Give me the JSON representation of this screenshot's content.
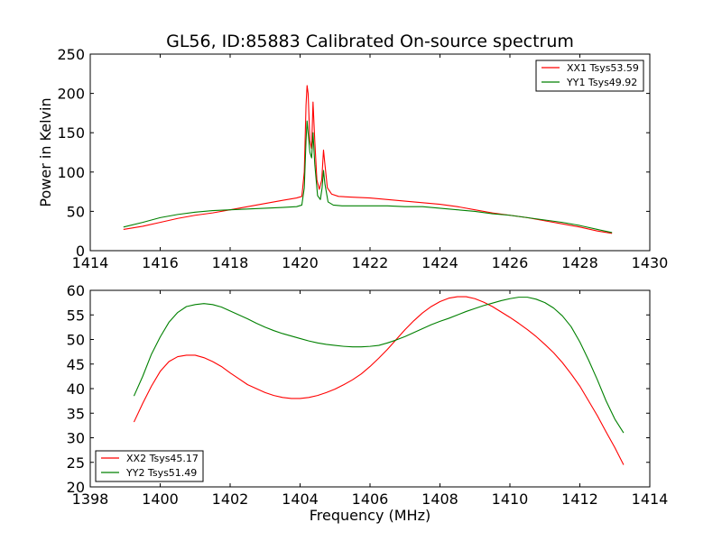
{
  "chart_data": [
    {
      "type": "line",
      "title": "GL56, ID:85883 Calibrated On-source spectrum",
      "xlabel": "",
      "ylabel": "Power in Kelvin",
      "xlim": [
        1414,
        1430
      ],
      "ylim": [
        0,
        250
      ],
      "xticks": [
        1414,
        1416,
        1418,
        1420,
        1422,
        1424,
        1426,
        1428,
        1430
      ],
      "yticks": [
        0,
        50,
        100,
        150,
        200,
        250
      ],
      "legend": "top-right",
      "grid": false,
      "series": [
        {
          "name": "XX1 Tsys53.59",
          "color": "#ff0000",
          "points": [
            [
              1414.95,
              27
            ],
            [
              1415.5,
              31
            ],
            [
              1416,
              36
            ],
            [
              1416.5,
              41
            ],
            [
              1417,
              45
            ],
            [
              1417.5,
              48
            ],
            [
              1418,
              52
            ],
            [
              1418.5,
              56
            ],
            [
              1419,
              60
            ],
            [
              1419.5,
              64
            ],
            [
              1419.9,
              67
            ],
            [
              1420.05,
              69
            ],
            [
              1420.12,
              100
            ],
            [
              1420.17,
              185
            ],
            [
              1420.2,
              210
            ],
            [
              1420.23,
              200
            ],
            [
              1420.28,
              140
            ],
            [
              1420.33,
              130
            ],
            [
              1420.37,
              189
            ],
            [
              1420.42,
              140
            ],
            [
              1420.48,
              90
            ],
            [
              1420.55,
              78
            ],
            [
              1420.62,
              90
            ],
            [
              1420.67,
              128
            ],
            [
              1420.71,
              110
            ],
            [
              1420.78,
              80
            ],
            [
              1420.9,
              72
            ],
            [
              1421.1,
              69
            ],
            [
              1421.5,
              68
            ],
            [
              1422,
              67
            ],
            [
              1422.5,
              65
            ],
            [
              1423,
              63
            ],
            [
              1423.5,
              61
            ],
            [
              1424,
              59
            ],
            [
              1424.5,
              56
            ],
            [
              1425,
              52
            ],
            [
              1425.5,
              48
            ],
            [
              1426,
              45
            ],
            [
              1426.5,
              42
            ],
            [
              1427,
              38
            ],
            [
              1427.5,
              34
            ],
            [
              1428,
              30
            ],
            [
              1428.5,
              25
            ],
            [
              1428.92,
              22
            ]
          ]
        },
        {
          "name": "YY1 Tsys49.92",
          "color": "#008000",
          "points": [
            [
              1414.95,
              30
            ],
            [
              1415.5,
              36
            ],
            [
              1416,
              42
            ],
            [
              1416.5,
              46
            ],
            [
              1417,
              49
            ],
            [
              1417.5,
              51
            ],
            [
              1418,
              52
            ],
            [
              1418.5,
              53
            ],
            [
              1419,
              54
            ],
            [
              1419.5,
              55
            ],
            [
              1419.9,
              56
            ],
            [
              1420.05,
              58
            ],
            [
              1420.12,
              80
            ],
            [
              1420.17,
              140
            ],
            [
              1420.2,
              165
            ],
            [
              1420.23,
              150
            ],
            [
              1420.28,
              125
            ],
            [
              1420.33,
              118
            ],
            [
              1420.37,
              150
            ],
            [
              1420.42,
              110
            ],
            [
              1420.5,
              70
            ],
            [
              1420.58,
              65
            ],
            [
              1420.63,
              80
            ],
            [
              1420.67,
              102
            ],
            [
              1420.71,
              85
            ],
            [
              1420.8,
              62
            ],
            [
              1420.95,
              58
            ],
            [
              1421.2,
              57
            ],
            [
              1421.5,
              57
            ],
            [
              1422,
              57
            ],
            [
              1422.5,
              57
            ],
            [
              1423,
              56
            ],
            [
              1423.5,
              56
            ],
            [
              1424,
              54
            ],
            [
              1424.5,
              52
            ],
            [
              1425,
              50
            ],
            [
              1425.5,
              47
            ],
            [
              1426,
              45
            ],
            [
              1426.5,
              42
            ],
            [
              1427,
              39
            ],
            [
              1427.5,
              36
            ],
            [
              1428,
              32
            ],
            [
              1428.5,
              27
            ],
            [
              1428.92,
              23
            ]
          ]
        }
      ]
    },
    {
      "type": "line",
      "title": "",
      "xlabel": "Frequency (MHz)",
      "ylabel": "",
      "xlim": [
        1398,
        1414
      ],
      "ylim": [
        20,
        60
      ],
      "xticks": [
        1398,
        1400,
        1402,
        1404,
        1406,
        1408,
        1410,
        1412,
        1414
      ],
      "yticks": [
        20,
        25,
        30,
        35,
        40,
        45,
        50,
        55,
        60
      ],
      "legend": "bottom-left",
      "grid": false,
      "series": [
        {
          "name": "XX2 Tsys45.17",
          "color": "#ff0000",
          "points": [
            [
              1399.25,
              33.2
            ],
            [
              1399.5,
              37
            ],
            [
              1399.75,
              40.5
            ],
            [
              1400,
              43.5
            ],
            [
              1400.25,
              45.5
            ],
            [
              1400.5,
              46.5
            ],
            [
              1400.75,
              46.8
            ],
            [
              1401,
              46.8
            ],
            [
              1401.25,
              46.3
            ],
            [
              1401.5,
              45.5
            ],
            [
              1401.75,
              44.5
            ],
            [
              1402,
              43.2
            ],
            [
              1402.25,
              42
            ],
            [
              1402.5,
              40.8
            ],
            [
              1402.75,
              40
            ],
            [
              1403,
              39.2
            ],
            [
              1403.25,
              38.6
            ],
            [
              1403.5,
              38.2
            ],
            [
              1403.75,
              38
            ],
            [
              1404,
              38
            ],
            [
              1404.25,
              38.2
            ],
            [
              1404.5,
              38.6
            ],
            [
              1404.75,
              39.2
            ],
            [
              1405,
              39.9
            ],
            [
              1405.25,
              40.8
            ],
            [
              1405.5,
              41.8
            ],
            [
              1405.75,
              43
            ],
            [
              1406,
              44.5
            ],
            [
              1406.25,
              46.2
            ],
            [
              1406.5,
              48
            ],
            [
              1406.75,
              50
            ],
            [
              1407,
              52
            ],
            [
              1407.25,
              53.8
            ],
            [
              1407.5,
              55.4
            ],
            [
              1407.75,
              56.7
            ],
            [
              1408,
              57.7
            ],
            [
              1408.25,
              58.4
            ],
            [
              1408.5,
              58.7
            ],
            [
              1408.75,
              58.7
            ],
            [
              1409,
              58.3
            ],
            [
              1409.25,
              57.6
            ],
            [
              1409.5,
              56.7
            ],
            [
              1409.75,
              55.6
            ],
            [
              1410,
              54.5
            ],
            [
              1410.25,
              53.3
            ],
            [
              1410.5,
              52
            ],
            [
              1410.75,
              50.6
            ],
            [
              1411,
              49
            ],
            [
              1411.25,
              47.3
            ],
            [
              1411.5,
              45.3
            ],
            [
              1411.75,
              43
            ],
            [
              1412,
              40.5
            ],
            [
              1412.25,
              37.5
            ],
            [
              1412.5,
              34.5
            ],
            [
              1412.75,
              31.2
            ],
            [
              1413,
              28
            ],
            [
              1413.25,
              24.5
            ]
          ]
        },
        {
          "name": "YY2 Tsys51.49",
          "color": "#008000",
          "points": [
            [
              1399.25,
              38.5
            ],
            [
              1399.5,
              42.5
            ],
            [
              1399.75,
              47
            ],
            [
              1400,
              50.5
            ],
            [
              1400.25,
              53.5
            ],
            [
              1400.5,
              55.5
            ],
            [
              1400.75,
              56.7
            ],
            [
              1401,
              57.1
            ],
            [
              1401.25,
              57.3
            ],
            [
              1401.5,
              57.1
            ],
            [
              1401.75,
              56.6
            ],
            [
              1402,
              55.8
            ],
            [
              1402.25,
              55
            ],
            [
              1402.5,
              54.2
            ],
            [
              1402.75,
              53.3
            ],
            [
              1403,
              52.5
            ],
            [
              1403.25,
              51.8
            ],
            [
              1403.5,
              51.2
            ],
            [
              1403.75,
              50.7
            ],
            [
              1404,
              50.2
            ],
            [
              1404.25,
              49.7
            ],
            [
              1404.5,
              49.3
            ],
            [
              1404.75,
              49
            ],
            [
              1405,
              48.8
            ],
            [
              1405.25,
              48.6
            ],
            [
              1405.5,
              48.5
            ],
            [
              1405.75,
              48.5
            ],
            [
              1406,
              48.6
            ],
            [
              1406.25,
              48.8
            ],
            [
              1406.5,
              49.3
            ],
            [
              1406.75,
              49.9
            ],
            [
              1407,
              50.6
            ],
            [
              1407.25,
              51.4
            ],
            [
              1407.5,
              52.2
            ],
            [
              1407.75,
              53
            ],
            [
              1408,
              53.7
            ],
            [
              1408.25,
              54.3
            ],
            [
              1408.5,
              55
            ],
            [
              1408.75,
              55.7
            ],
            [
              1409,
              56.3
            ],
            [
              1409.25,
              56.9
            ],
            [
              1409.5,
              57.4
            ],
            [
              1409.75,
              57.9
            ],
            [
              1410,
              58.3
            ],
            [
              1410.25,
              58.6
            ],
            [
              1410.5,
              58.6
            ],
            [
              1410.75,
              58.2
            ],
            [
              1411,
              57.5
            ],
            [
              1411.25,
              56.4
            ],
            [
              1411.5,
              54.8
            ],
            [
              1411.75,
              52.6
            ],
            [
              1412,
              49.5
            ],
            [
              1412.25,
              45.8
            ],
            [
              1412.5,
              41.8
            ],
            [
              1412.75,
              37.5
            ],
            [
              1413,
              33.8
            ],
            [
              1413.25,
              31
            ]
          ]
        }
      ]
    }
  ]
}
